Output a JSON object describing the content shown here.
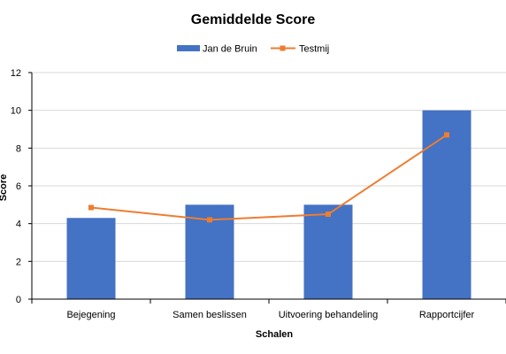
{
  "chart_data": {
    "type": "bar",
    "title": "Gemiddelde Score",
    "xlabel": "Schalen",
    "ylabel": "Score",
    "ylim": [
      0,
      12
    ],
    "yticks": [
      0,
      2,
      4,
      6,
      8,
      10,
      12
    ],
    "categories": [
      "Bejegening",
      "Samen beslissen",
      "Uitvoering behandeling",
      "Rapportcijfer"
    ],
    "series": [
      {
        "name": "Jan de Bruin",
        "type": "bar",
        "color": "#4472C4",
        "values": [
          4.3,
          5.0,
          5.0,
          10.0
        ]
      },
      {
        "name": "Testmij",
        "type": "line",
        "color": "#ED7D31",
        "marker": "square",
        "values": [
          4.85,
          4.2,
          4.5,
          8.7
        ]
      }
    ],
    "legend": "top-center",
    "grid": true
  }
}
